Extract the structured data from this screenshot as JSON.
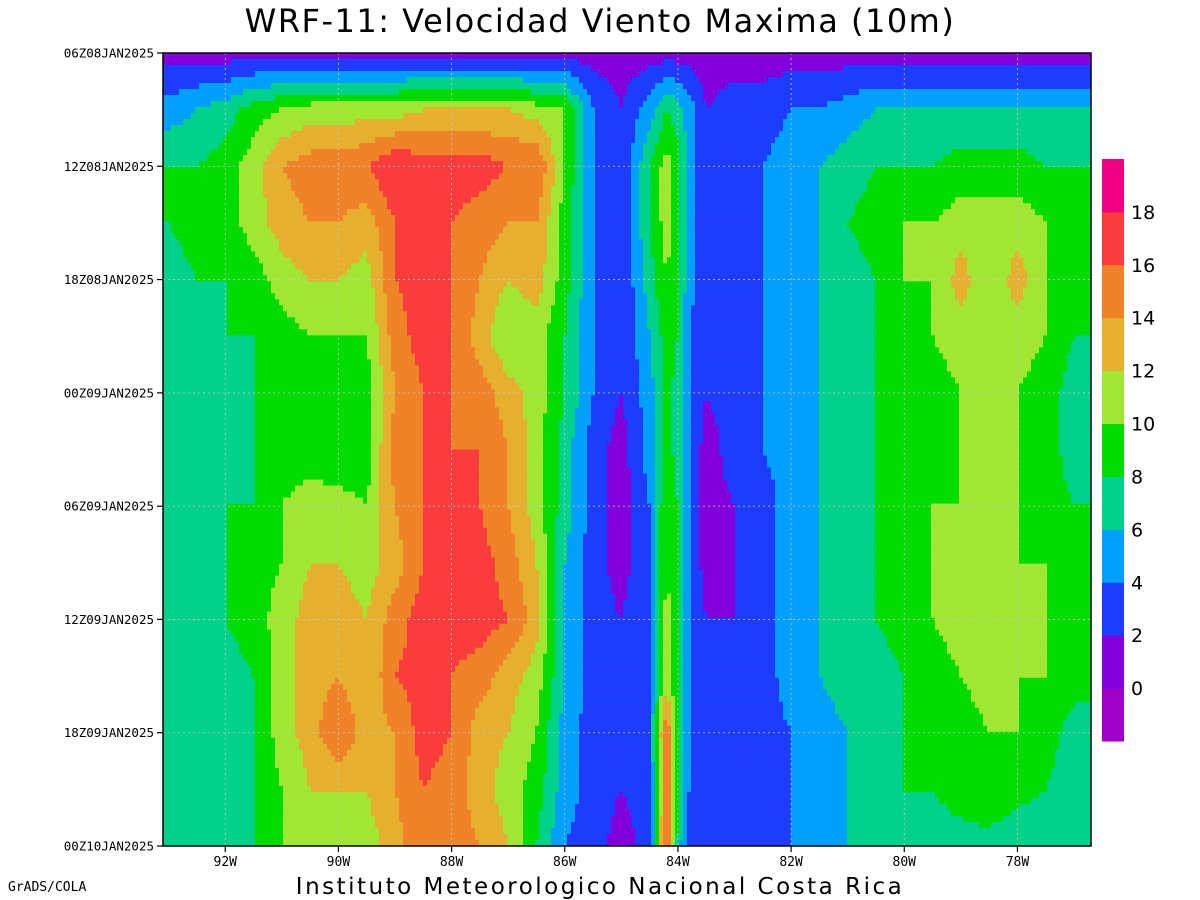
{
  "title": "WRF-11: Velocidad  Viento Maxima (10m)",
  "footer": {
    "left": "GrADS/COLA",
    "center": "Instituto Meteorologico Nacional Costa Rica"
  },
  "chart_data": {
    "type": "heatmap",
    "title": "WRF-11: Velocidad  Viento Maxima (10m)",
    "variable": "Velocidad Viento Maxima (10m)",
    "x_axis": {
      "label": "",
      "range": [
        -93.1,
        -76.7
      ],
      "ticks": [
        -92,
        -90,
        -88,
        -86,
        -84,
        -82,
        -80,
        -78
      ],
      "tick_labels": [
        "92W",
        "90W",
        "88W",
        "86W",
        "84W",
        "82W",
        "80W",
        "78W"
      ]
    },
    "y_axis": {
      "label": "",
      "inverted": true,
      "range_hours": [
        0,
        42
      ],
      "tick_hours": [
        0,
        6,
        12,
        18,
        24,
        30,
        36,
        42
      ],
      "tick_labels": [
        "06Z08JAN2025",
        "12Z08JAN2025",
        "18Z08JAN2025",
        "00Z09JAN2025",
        "06Z09JAN2025",
        "12Z09JAN2025",
        "18Z09JAN2025",
        "00Z10JAN2025"
      ]
    },
    "grid": true,
    "colorbar": {
      "position": "right",
      "levels": [
        0,
        2,
        4,
        6,
        8,
        10,
        12,
        14,
        16,
        18
      ],
      "colors": [
        "#a000c8",
        "#8200dc",
        "#1e3cff",
        "#00a0ff",
        "#00d28c",
        "#00dc00",
        "#a0e632",
        "#e6af2d",
        "#f08228",
        "#fa3c3c",
        "#f00082"
      ]
    },
    "longitudes": [
      -93,
      -92.5,
      -92,
      -91.5,
      -91,
      -90.5,
      -90,
      -89.5,
      -89,
      -88.5,
      -88,
      -87.5,
      -87,
      -86.5,
      -86,
      -85.5,
      -85,
      -84.5,
      -84.2,
      -84,
      -83.8,
      -83.5,
      -83,
      -82.5,
      -82,
      -81.5,
      -81,
      -80.5,
      -80,
      -79.5,
      -79,
      -78.5,
      -78,
      -77.5,
      -77
    ],
    "hours": [
      0,
      3,
      6,
      9,
      12,
      15,
      18,
      21,
      24,
      27,
      30,
      33,
      36,
      39,
      42
    ],
    "values": [
      [
        1,
        1,
        1,
        1,
        1,
        1,
        1,
        1,
        1,
        1,
        1,
        1,
        1,
        1,
        1,
        1,
        1,
        1,
        1,
        1,
        1,
        1,
        1,
        1,
        1,
        1,
        1,
        1,
        1,
        1,
        1,
        1,
        1,
        1,
        1
      ],
      [
        5,
        6,
        7,
        9,
        10,
        11,
        11,
        11,
        11,
        12,
        12,
        12,
        12,
        11,
        10,
        4,
        2,
        5,
        8,
        7,
        5,
        2,
        3,
        3,
        4,
        4,
        5,
        6,
        6,
        6,
        6,
        6,
        6,
        6,
        6
      ],
      [
        8,
        8,
        9,
        11,
        14,
        15,
        15,
        16,
        18,
        17,
        17,
        17,
        16,
        16,
        10,
        4,
        2,
        8,
        11,
        9,
        5,
        2,
        3,
        4,
        5,
        6,
        7,
        8,
        8,
        8,
        9,
        9,
        9,
        8,
        8
      ],
      [
        8,
        9,
        9,
        11,
        13,
        14,
        14,
        13,
        16,
        17,
        16,
        15,
        14,
        14,
        9,
        4,
        2,
        8,
        11,
        9,
        5,
        2,
        3,
        4,
        5,
        6,
        8,
        9,
        10,
        10,
        11,
        11,
        11,
        10,
        8
      ],
      [
        7,
        8,
        8,
        9,
        11,
        12,
        12,
        11,
        16,
        17,
        16,
        14,
        12,
        13,
        9,
        4,
        2,
        7,
        10,
        8,
        5,
        2,
        3,
        4,
        5,
        6,
        7,
        8,
        10,
        10,
        13,
        10,
        13,
        10,
        8
      ],
      [
        6,
        7,
        8,
        8,
        9,
        10,
        10,
        10,
        15,
        17,
        16,
        13,
        10,
        11,
        8,
        4,
        2,
        6,
        9,
        8,
        4,
        2,
        3,
        4,
        5,
        6,
        7,
        8,
        9,
        10,
        11,
        11,
        11,
        10,
        8
      ],
      [
        6,
        7,
        7,
        8,
        8,
        9,
        9,
        9,
        14,
        16,
        16,
        15,
        13,
        11,
        8,
        4,
        2,
        5,
        9,
        7,
        4,
        2,
        3,
        4,
        5,
        6,
        7,
        8,
        9,
        9,
        10,
        10,
        10,
        9,
        7
      ],
      [
        7,
        7,
        7,
        8,
        9,
        9,
        8,
        9,
        15,
        16,
        16,
        16,
        14,
        11,
        7,
        3,
        1,
        5,
        9,
        7,
        4,
        1,
        3,
        4,
        5,
        6,
        7,
        8,
        9,
        9,
        10,
        10,
        10,
        9,
        7
      ],
      [
        7,
        7,
        8,
        8,
        10,
        11,
        11,
        10,
        14,
        16,
        16,
        16,
        14,
        11,
        7,
        3,
        1,
        4,
        10,
        8,
        4,
        1,
        2,
        3,
        5,
        6,
        7,
        8,
        9,
        10,
        10,
        10,
        10,
        9,
        8
      ],
      [
        7,
        7,
        8,
        9,
        10,
        12,
        12,
        11,
        13,
        16,
        17,
        17,
        15,
        12,
        6,
        3,
        1,
        4,
        10,
        8,
        4,
        1,
        2,
        3,
        5,
        6,
        7,
        8,
        9,
        10,
        11,
        11,
        10,
        10,
        9
      ],
      [
        7,
        7,
        8,
        9,
        11,
        13,
        13,
        12,
        15,
        17,
        17,
        17,
        16,
        13,
        6,
        3,
        2,
        4,
        11,
        8,
        4,
        2,
        2,
        3,
        5,
        6,
        7,
        8,
        9,
        10,
        11,
        11,
        10,
        10,
        9
      ],
      [
        7,
        7,
        7,
        8,
        11,
        13,
        14,
        12,
        16,
        17,
        16,
        15,
        13,
        11,
        6,
        3,
        2,
        4,
        11,
        8,
        4,
        2,
        2,
        3,
        5,
        6,
        7,
        7,
        8,
        9,
        10,
        11,
        10,
        10,
        9
      ],
      [
        7,
        7,
        7,
        8,
        11,
        13,
        16,
        13,
        14,
        17,
        16,
        13,
        12,
        10,
        5,
        3,
        2,
        4,
        16,
        8,
        4,
        2,
        2,
        3,
        4,
        5,
        6,
        7,
        8,
        8,
        9,
        10,
        10,
        9,
        7
      ],
      [
        7,
        7,
        7,
        8,
        10,
        12,
        12,
        12,
        14,
        16,
        15,
        13,
        11,
        9,
        5,
        3,
        2,
        3,
        16,
        8,
        4,
        2,
        2,
        3,
        4,
        5,
        6,
        7,
        8,
        8,
        9,
        10,
        9,
        8,
        7
      ],
      [
        7,
        7,
        7,
        8,
        10,
        11,
        11,
        11,
        13,
        16,
        15,
        14,
        12,
        8,
        4,
        3,
        1,
        3,
        17,
        7,
        3,
        2,
        2,
        3,
        4,
        5,
        6,
        7,
        8,
        7,
        7,
        7,
        6,
        6,
        6
      ]
    ]
  }
}
